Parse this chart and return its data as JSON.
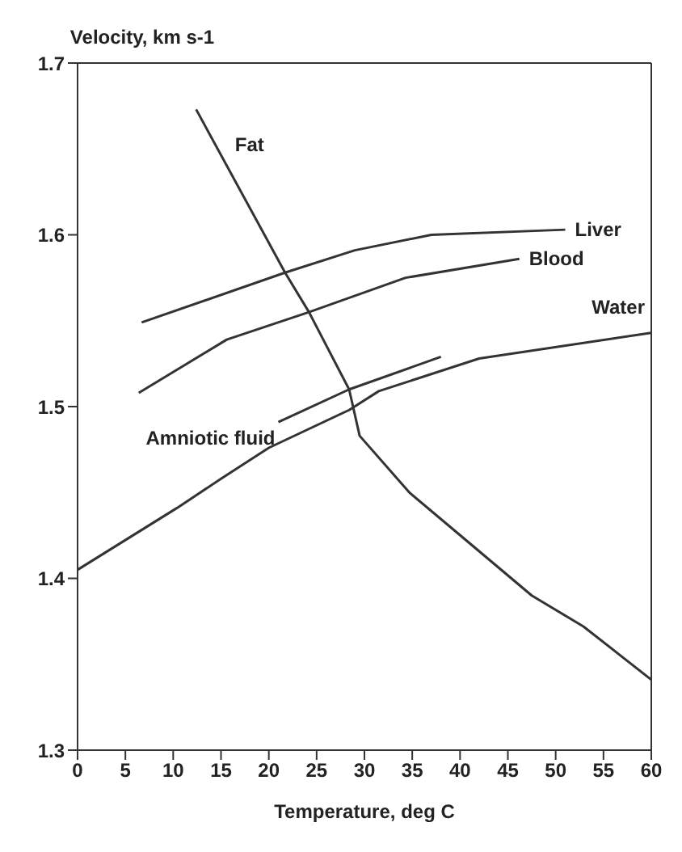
{
  "chart_data": {
    "type": "line",
    "ylabel": "Velocity, km s-1",
    "xlabel": "Temperature, deg C",
    "xlim": [
      0,
      60
    ],
    "xticks": [
      0,
      5,
      10,
      15,
      20,
      25,
      30,
      35,
      40,
      45,
      50,
      55,
      60
    ],
    "ylim": [
      1.3,
      1.7
    ],
    "yticks": [
      1.3,
      1.4,
      1.5,
      1.6,
      1.7
    ],
    "grid": false,
    "legend": false,
    "marker": "none",
    "line_style": "solid",
    "series": [
      {
        "name": "Fat",
        "color": "#333333",
        "x": [
          12.4,
          21.7,
          24.2,
          28.4,
          29.5,
          34.7,
          41.1,
          47.5,
          52.9,
          60
        ],
        "values": [
          1.673,
          1.578,
          1.555,
          1.51,
          1.483,
          1.45,
          1.42,
          1.39,
          1.372,
          1.341
        ]
      },
      {
        "name": "Liver",
        "color": "#333333",
        "x": [
          6.7,
          21.7,
          29,
          37,
          51
        ],
        "values": [
          1.549,
          1.578,
          1.591,
          1.6,
          1.603
        ]
      },
      {
        "name": "Blood",
        "color": "#333333",
        "x": [
          6.4,
          15.6,
          24.2,
          34.3,
          46.2
        ],
        "values": [
          1.508,
          1.539,
          1.555,
          1.575,
          1.586
        ]
      },
      {
        "name": "Water",
        "color": "#333333",
        "x": [
          0,
          10.4,
          15,
          20,
          28.4,
          31.5,
          42,
          60
        ],
        "values": [
          1.405,
          1.441,
          1.458,
          1.476,
          1.498,
          1.509,
          1.528,
          1.543
        ]
      },
      {
        "name": "Amniotic fluid",
        "color": "#333333",
        "x": [
          21,
          28.4,
          38
        ],
        "values": [
          1.491,
          1.51,
          1.529
        ]
      }
    ]
  }
}
